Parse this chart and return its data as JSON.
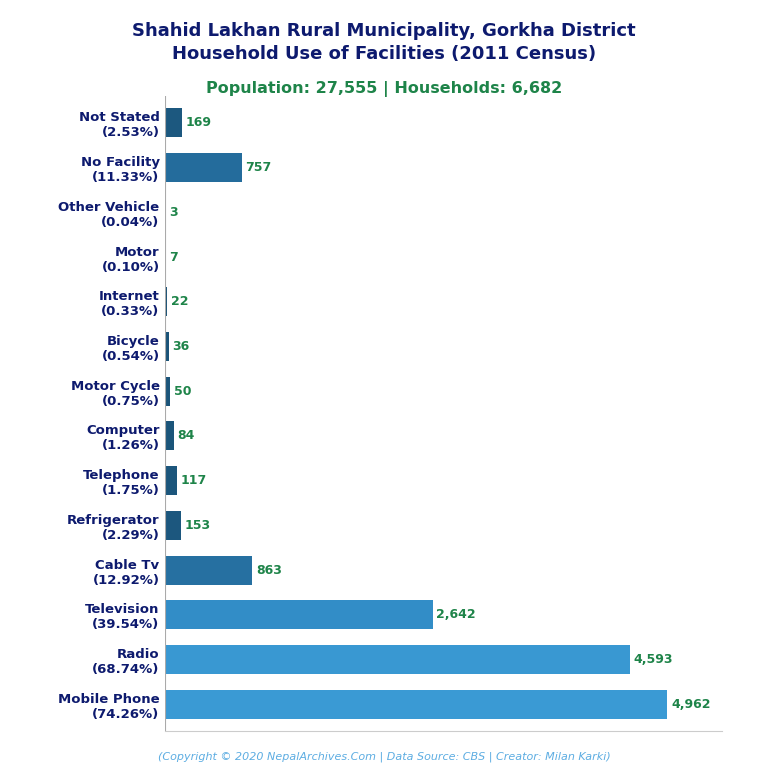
{
  "title_line1": "Shahid Lakhan Rural Municipality, Gorkha District",
  "title_line2": "Household Use of Facilities (2011 Census)",
  "subtitle": "Population: 27,555 | Households: 6,682",
  "footer": "(Copyright © 2020 NepalArchives.Com | Data Source: CBS | Creator: Milan Karki)",
  "categories": [
    "Mobile Phone\n(74.26%)",
    "Radio\n(68.74%)",
    "Television\n(39.54%)",
    "Cable Tv\n(12.92%)",
    "Refrigerator\n(2.29%)",
    "Telephone\n(1.75%)",
    "Computer\n(1.26%)",
    "Motor Cycle\n(0.75%)",
    "Bicycle\n(0.54%)",
    "Internet\n(0.33%)",
    "Motor\n(0.10%)",
    "Other Vehicle\n(0.04%)",
    "No Facility\n(11.33%)",
    "Not Stated\n(2.53%)"
  ],
  "values": [
    4962,
    4593,
    2642,
    863,
    153,
    117,
    84,
    50,
    36,
    22,
    7,
    3,
    757,
    169
  ],
  "bar_color_dark": "#1a5276",
  "bar_color_light": "#2e86c1",
  "title_color": "#0d1a6e",
  "subtitle_color": "#1e8449",
  "value_color": "#1e8449",
  "footer_color": "#5dade2",
  "background_color": "#ffffff",
  "xlim": [
    0,
    5500
  ],
  "title_fontsize": 13,
  "subtitle_fontsize": 11.5,
  "label_fontsize": 9.5,
  "value_fontsize": 9,
  "footer_fontsize": 8
}
